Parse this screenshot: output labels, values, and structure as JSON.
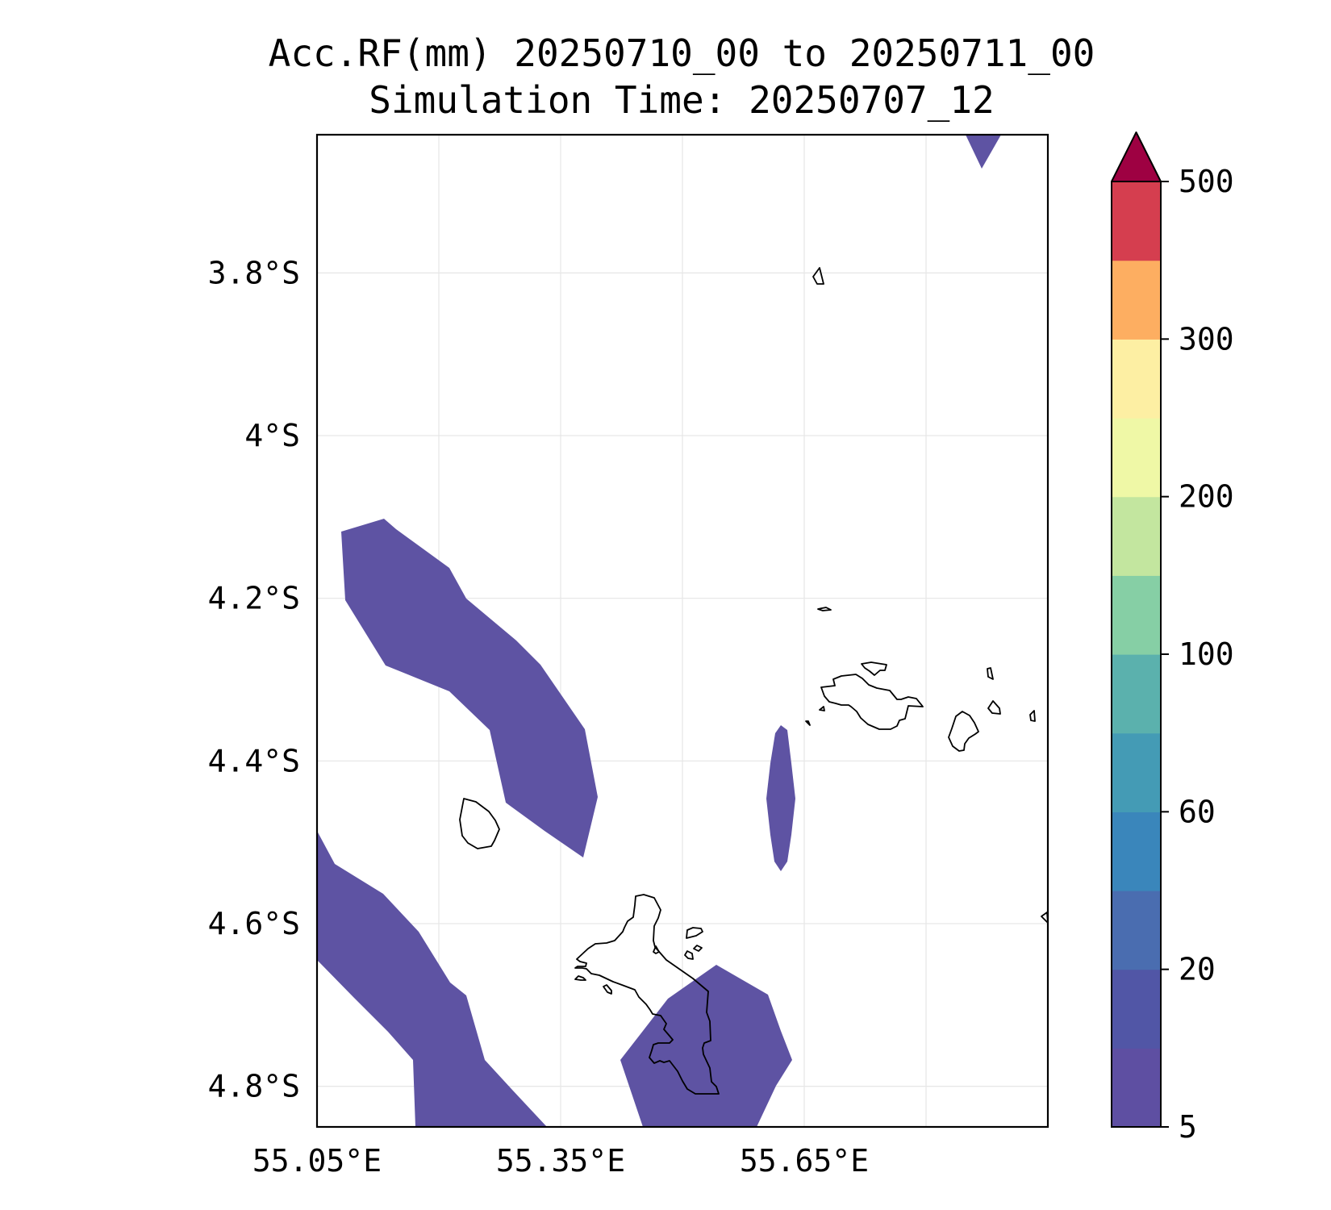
{
  "title": {
    "line1": "Acc.RF(mm) 20250710_00 to 20250711_00",
    "line2": "Simulation Time: 20250707_12"
  },
  "map": {
    "lon_range": [
      55.05,
      55.95
    ],
    "lat_range": [
      -4.85,
      -3.63
    ],
    "lon_ticks": [
      55.05,
      55.35,
      55.65
    ],
    "lon_tick_labels": [
      "55.05°E",
      "55.35°E",
      "55.65°E"
    ],
    "lat_ticks": [
      -3.8,
      -4.0,
      -4.2,
      -4.4,
      -4.6,
      -4.8
    ],
    "lat_tick_labels": [
      "3.8°S",
      "4°S",
      "4.2°S",
      "4.4°S",
      "4.6°S",
      "4.8°S"
    ],
    "grid": true,
    "rain_fill_color": "#5e53a3",
    "coastline_color": "#000000"
  },
  "colorbar": {
    "placement": "right",
    "extend": "max",
    "extend_color": "#9e0142",
    "colors": [
      "#5e4fa2",
      "#5156a6",
      "#4a6db0",
      "#3a86bb",
      "#449bb5",
      "#5bb1ad",
      "#86cfa5",
      "#c3e69f",
      "#eff8a6",
      "#fdefa3",
      "#fdae61",
      "#d53e4f"
    ],
    "tick_labels": [
      "5",
      "20",
      "60",
      "100",
      "200",
      "300",
      "500"
    ]
  },
  "chart_data": {
    "type": "heatmap",
    "title": "Acc.RF(mm) 20250710_00 to 20250711_00",
    "subtitle": "Simulation Time: 20250707_12",
    "xlabel": "",
    "ylabel": "",
    "xlim": [
      55.05,
      55.95
    ],
    "ylim": [
      -4.85,
      -3.63
    ],
    "colorbar_ticks": [
      5,
      20,
      60,
      100,
      200,
      300,
      500
    ],
    "filled_regions_range": "5-10 mm"
  }
}
